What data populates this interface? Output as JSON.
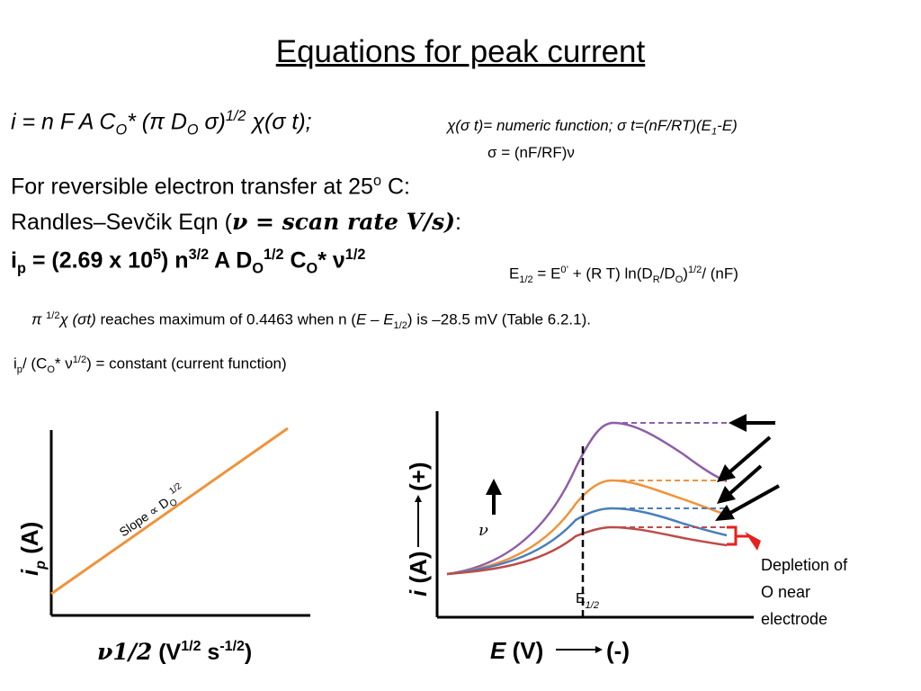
{
  "title": "Equations for peak current",
  "eq1": {
    "pre": "i = n F A C",
    "sub1": "O",
    "mid1": "* (π D",
    "sub2": "O",
    "mid2": " σ)",
    "sup1": "1/2",
    "end": " χ(σ t);"
  },
  "note1": {
    "a": "χ(σ t)= numeric function; σ t=(nF/RT)(E",
    "sub": "1",
    "b": "-E)"
  },
  "note2": "σ = (nF/RF)ν",
  "line2": {
    "a": "For reversible electron  transfer at 25",
    "sup": "o",
    "b": " C:"
  },
  "line3": {
    "a": "Randles–Sevčik Eqn  (",
    "b": "ν = scan rate V/s)",
    "c": ":"
  },
  "line4": {
    "a": "i",
    "sub1": "p",
    "b": " = (2.69 x 10",
    "sup1": "5",
    "c": ") n",
    "sup2": "3/2",
    "d": " A D",
    "sub2": "O",
    "sup3": "1/2",
    "e": " C",
    "sub3": "O",
    "f": "* ν",
    "sup4": "1/2"
  },
  "e12": {
    "a": "E",
    "sub1": "1/2",
    "b": " = E",
    "sup1": "0’",
    "c": " + (R T) ln(D",
    "sub2": "R",
    "d": "/D",
    "sub3": "O",
    "e": ")",
    "sup2": "1/2",
    "f": "/ (nF)"
  },
  "maxline": {
    "a": "π ",
    "sup1": "1/2",
    "b": "χ (σt)",
    "c": " reaches maximum of 0.4463 when n (",
    "d": "E – E",
    "sub1": "1/2",
    "e": ") is –28.5 mV   (Table 6.2.1)."
  },
  "cfline": {
    "a": "i",
    "sub1": "p",
    "b": "/ (C",
    "sub2": "O",
    "c": "* ν",
    "sup1": "1/2",
    "d": ") = constant (current function)"
  },
  "left_plot": {
    "ylabel": "i",
    "ylabel_sub": "p",
    "ylabel_end": " (A)",
    "xlabel_a": "ν1/2",
    "xlabel_b": " (V",
    "xlabel_sup1": "1/2",
    "xlabel_c": " s",
    "xlabel_sup2": "-1/2",
    "xlabel_d": ")",
    "slope_label": "Slope ∝ D",
    "slope_sub": "O",
    "slope_sup": "1/2",
    "line_color": "#f0923a"
  },
  "right_plot": {
    "ylabel": "i (A)",
    "plus": "(+)",
    "xlabel": "E (V)",
    "minus": "(-)",
    "e_half": "E",
    "e_half_sub": "1/2",
    "nu": "ν",
    "depletion": [
      "Depletion of",
      "O near",
      "electrode"
    ],
    "colors": [
      "#8e5ea8",
      "#f0923a",
      "#4a7ebb",
      "#be4b48"
    ],
    "marker_color": "#e8201c"
  }
}
